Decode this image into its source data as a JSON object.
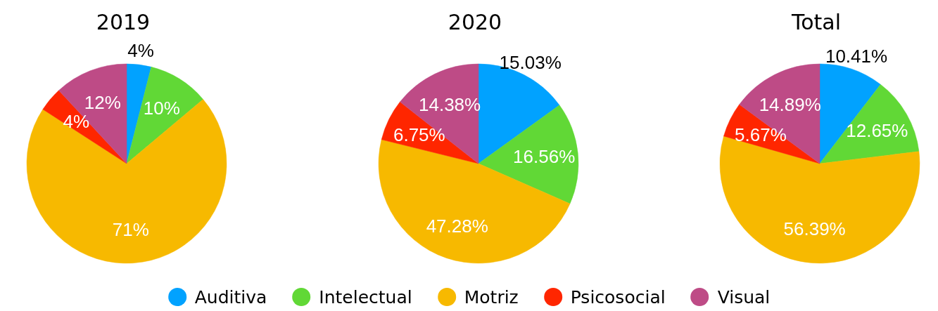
{
  "chart_data": {
    "type": "pie",
    "categories": [
      "Auditiva",
      "Intelectual",
      "Motriz",
      "Psicosocial",
      "Visual"
    ],
    "colors": [
      "#01a2ff",
      "#61d836",
      "#f7b900",
      "#ff2600",
      "#be4b86"
    ],
    "legend": "bottom",
    "series": [
      {
        "name": "2019",
        "values": [
          4,
          10,
          71,
          4,
          12
        ],
        "value_labels": [
          "4%",
          "10%",
          "71%",
          "4%",
          "12%"
        ]
      },
      {
        "name": "2020",
        "values": [
          15.03,
          16.56,
          47.28,
          6.75,
          14.38
        ],
        "value_labels": [
          "15.03%",
          "16.56%",
          "47.28%",
          "6.75%",
          "14.38%"
        ]
      },
      {
        "name": "Total",
        "values": [
          10.41,
          12.65,
          56.39,
          5.67,
          14.89
        ],
        "value_labels": [
          "10.41%",
          "12.65%",
          "56.39%",
          "5.67%",
          "14.89%"
        ]
      }
    ]
  }
}
